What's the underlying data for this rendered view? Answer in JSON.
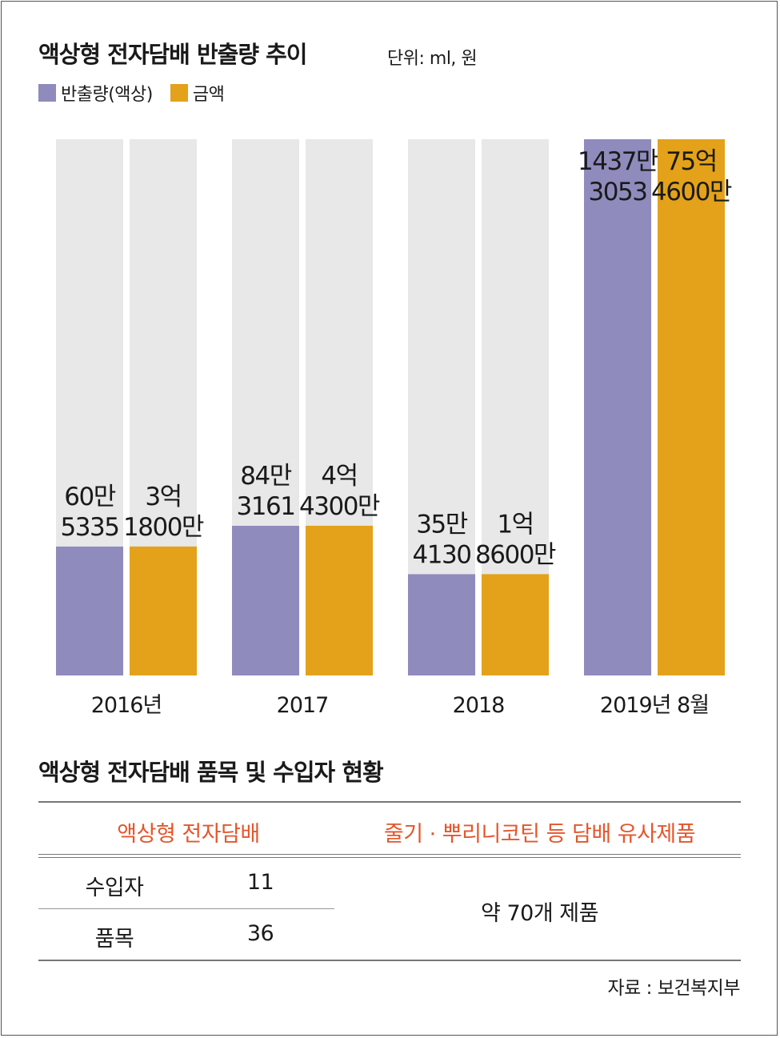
{
  "title": "액상형 전자담배 반출량 추이",
  "unit": "단위: ml, 원",
  "colors": {
    "volume": "#8f8bbd",
    "amount": "#e3a21a",
    "track": "#e8e8e8",
    "table_head": "#e4562c"
  },
  "chart_data": {
    "type": "bar",
    "title": "액상형 전자담배 반출량 추이",
    "categories": [
      "2016년",
      "2017",
      "2018",
      "2019년 8월"
    ],
    "series": [
      {
        "name": "반출량(액상)",
        "values": [
          605335,
          843161,
          354130,
          14373053
        ],
        "labels": [
          [
            "60만",
            "5335"
          ],
          [
            "84만",
            "3161"
          ],
          [
            "35만",
            "4130"
          ],
          [
            "1437만",
            "3053"
          ]
        ]
      },
      {
        "name": "금액",
        "values": [
          318000000,
          443000000,
          186000000,
          7546000000
        ],
        "labels": [
          [
            "3억",
            "1800만"
          ],
          [
            "4억",
            "4300만"
          ],
          [
            "1억",
            "8600만"
          ],
          [
            "75억",
            "4600만"
          ]
        ]
      }
    ]
  },
  "table": {
    "title": "액상형 전자담배 품목 및 수입자 현황",
    "header_left": "액상형 전자담배",
    "header_right": "줄기 · 뿌리니코틴 등 담배 유사제품",
    "rows": [
      {
        "label": "수입자",
        "value": "11"
      },
      {
        "label": "품목",
        "value": "36"
      }
    ],
    "right_value": "약 70개 제품"
  },
  "source": "자료 : 보건복지부"
}
